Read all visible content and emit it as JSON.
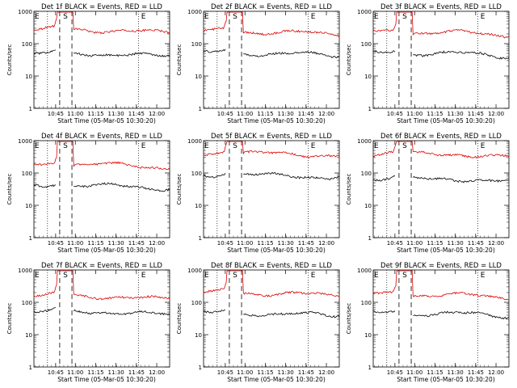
{
  "chart_data": [
    {
      "type": "line",
      "title": "Det 1f BLACK = Events, RED = LLD",
      "xlabel": "Start Time (05-Mar-05 10:30:20)",
      "ylabel": "Counts/sec",
      "yscale": "log",
      "ylim": [
        1,
        1000
      ],
      "ytick_labels": [
        "1",
        "10",
        "100",
        "1000"
      ],
      "xtick_labels": [
        "10:45",
        "11:00",
        "11:15",
        "11:30",
        "11:45",
        "12:00"
      ],
      "markers": [
        "E",
        "S",
        "E"
      ],
      "series": [
        {
          "color": "#dd0000",
          "baseline": 260
        },
        {
          "color": "#000000",
          "baseline": 48
        }
      ]
    },
    {
      "type": "line",
      "title": "Det 2f BLACK = Events, RED = LLD",
      "xlabel": "Start Time (05-Mar-05 10:30:20)",
      "ylabel": "Counts/sec",
      "yscale": "log",
      "ylim": [
        1,
        1000
      ],
      "ytick_labels": [
        "1",
        "10",
        "100",
        "1000"
      ],
      "xtick_labels": [
        "10:45",
        "11:00",
        "11:15",
        "11:30",
        "11:45",
        "12:00"
      ],
      "markers": [
        "E",
        "S",
        "E"
      ],
      "series": [
        {
          "color": "#dd0000",
          "baseline": 230
        },
        {
          "color": "#000000",
          "baseline": 50
        }
      ]
    },
    {
      "type": "line",
      "title": "Det 3f BLACK = Events, RED = LLD",
      "xlabel": "Start Time (05-Mar-05 10:30:20)",
      "ylabel": "Counts/sec",
      "yscale": "log",
      "ylim": [
        1,
        1000
      ],
      "ytick_labels": [
        "1",
        "10",
        "100",
        "1000"
      ],
      "xtick_labels": [
        "10:45",
        "11:00",
        "11:15",
        "11:30",
        "11:45",
        "12:00"
      ],
      "markers": [
        "E",
        "S",
        "E"
      ],
      "series": [
        {
          "color": "#dd0000",
          "baseline": 220
        },
        {
          "color": "#000000",
          "baseline": 50
        }
      ]
    },
    {
      "type": "line",
      "title": "Det 4f BLACK = Events, RED = LLD",
      "xlabel": "Start Time (05-Mar-05 10:30:20)",
      "ylabel": "Counts/sec",
      "yscale": "log",
      "ylim": [
        1,
        1000
      ],
      "ytick_labels": [
        "1",
        "10",
        "100",
        "1000"
      ],
      "xtick_labels": [
        "10:45",
        "11:00",
        "11:15",
        "11:30",
        "11:45",
        "12:00"
      ],
      "markers": [
        "E",
        "S",
        "E"
      ],
      "series": [
        {
          "color": "#dd0000",
          "baseline": 180
        },
        {
          "color": "#000000",
          "baseline": 40
        }
      ]
    },
    {
      "type": "line",
      "title": "Det 5f BLACK = Events, RED = LLD",
      "xlabel": "Start Time (05-Mar-05 10:30:20)",
      "ylabel": "Counts/sec",
      "yscale": "log",
      "ylim": [
        1,
        1000
      ],
      "ytick_labels": [
        "1",
        "10",
        "100",
        "1000"
      ],
      "xtick_labels": [
        "10:45",
        "11:00",
        "11:15",
        "11:30",
        "11:45",
        "12:00"
      ],
      "markers": [
        "E",
        "S",
        "E"
      ],
      "series": [
        {
          "color": "#dd0000",
          "baseline": 400
        },
        {
          "color": "#000000",
          "baseline": 85
        }
      ]
    },
    {
      "type": "line",
      "title": "Det 6f BLACK = Events, RED = LLD",
      "xlabel": "Start Time (05-Mar-05 10:30:20)",
      "ylabel": "Counts/sec",
      "yscale": "log",
      "ylim": [
        1,
        1000
      ],
      "ytick_labels": [
        "1",
        "10",
        "100",
        "1000"
      ],
      "xtick_labels": [
        "10:45",
        "11:00",
        "11:15",
        "11:30",
        "11:45",
        "12:00"
      ],
      "markers": [
        "E",
        "S",
        "E"
      ],
      "series": [
        {
          "color": "#dd0000",
          "baseline": 380
        },
        {
          "color": "#000000",
          "baseline": 65
        }
      ]
    },
    {
      "type": "line",
      "title": "Det 7f BLACK = Events, RED = LLD",
      "xlabel": "Start Time (05-Mar-05 10:30:20)",
      "ylabel": "Counts/sec",
      "yscale": "log",
      "ylim": [
        1,
        1000
      ],
      "ytick_labels": [
        "1",
        "10",
        "100",
        "1000"
      ],
      "xtick_labels": [
        "10:45",
        "11:00",
        "11:15",
        "11:30",
        "11:45",
        "12:00"
      ],
      "markers": [
        "E",
        "S",
        "E"
      ],
      "series": [
        {
          "color": "#dd0000",
          "baseline": 150
        },
        {
          "color": "#000000",
          "baseline": 50
        }
      ]
    },
    {
      "type": "line",
      "title": "Det 8f BLACK = Events, RED = LLD",
      "xlabel": "Start Time (05-Mar-05 10:30:20)",
      "ylabel": "Counts/sec",
      "yscale": "log",
      "ylim": [
        1,
        1000
      ],
      "ytick_labels": [
        "1",
        "10",
        "100",
        "1000"
      ],
      "xtick_labels": [
        "10:45",
        "11:00",
        "11:15",
        "11:30",
        "11:45",
        "12:00"
      ],
      "markers": [
        "E",
        "S",
        "E"
      ],
      "series": [
        {
          "color": "#dd0000",
          "baseline": 190
        },
        {
          "color": "#000000",
          "baseline": 45
        }
      ]
    },
    {
      "type": "line",
      "title": "Det 9f BLACK = Events, RED = LLD",
      "xlabel": "Start Time (05-Mar-05 10:30:20)",
      "ylabel": "Counts/sec",
      "yscale": "log",
      "ylim": [
        1,
        1000
      ],
      "ytick_labels": [
        "1",
        "10",
        "100",
        "1000"
      ],
      "xtick_labels": [
        "10:45",
        "11:00",
        "11:15",
        "11:30",
        "11:45",
        "12:00"
      ],
      "markers": [
        "E",
        "S",
        "E"
      ],
      "series": [
        {
          "color": "#dd0000",
          "baseline": 170
        },
        {
          "color": "#000000",
          "baseline": 45
        }
      ]
    }
  ]
}
